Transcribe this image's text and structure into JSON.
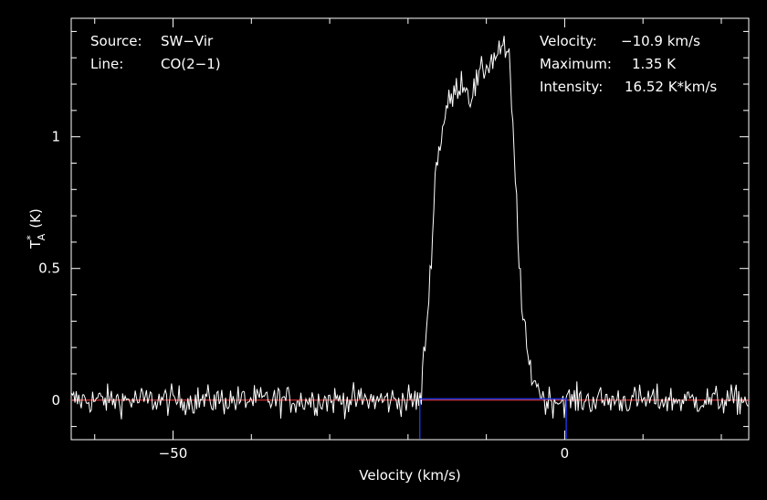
{
  "colors": {
    "background": "#000000",
    "spectrum": "#ffffff",
    "baseline": "#ff3b3b",
    "window": "#1a35d8"
  },
  "header_left": [
    {
      "label": "Source:",
      "value": "SW-Vir"
    },
    {
      "label": "Line:",
      "value": "CO(2-1)"
    }
  ],
  "header_right": [
    {
      "label": "Velocity:",
      "value": "-10.9 km/s"
    },
    {
      "label": "Maximum:",
      "value": "1.35 K"
    },
    {
      "label": "Intensity:",
      "value": "16.52 K*km/s"
    }
  ],
  "chart_data": {
    "type": "line",
    "xlabel": "Velocity (km/s)",
    "ylabel": {
      "base": "T",
      "sup": "*",
      "sub": "A",
      "unit": "(K)"
    },
    "xlim": [
      -63,
      23.5
    ],
    "ylim": [
      -0.15,
      1.45
    ],
    "xticks": [
      {
        "value": -50,
        "label": "-50"
      },
      {
        "value": 0,
        "label": "0"
      }
    ],
    "yticks": [
      {
        "value": 0,
        "label": "0"
      },
      {
        "value": 0.5,
        "label": "0.5"
      },
      {
        "value": 1,
        "label": "1"
      }
    ],
    "grid": false,
    "integration_window": [
      -18.5,
      0.2
    ],
    "baseline_level": 0.0,
    "line_profile": {
      "x": [
        -18.3,
        -17.3,
        -16.5,
        -15.2,
        -14.0,
        -13.1,
        -12.0,
        -11.0,
        -10.0,
        -9.0,
        -8.2,
        -7.8,
        -7.1,
        -6.3,
        -5.5,
        -4.5,
        -3.2,
        -2.7
      ],
      "y": [
        0.05,
        0.4,
        0.87,
        1.1,
        1.17,
        1.22,
        1.15,
        1.22,
        1.27,
        1.3,
        1.34,
        1.33,
        1.3,
        0.85,
        0.35,
        0.12,
        0.04,
        0.0
      ]
    },
    "noise_rms": 0.028
  }
}
